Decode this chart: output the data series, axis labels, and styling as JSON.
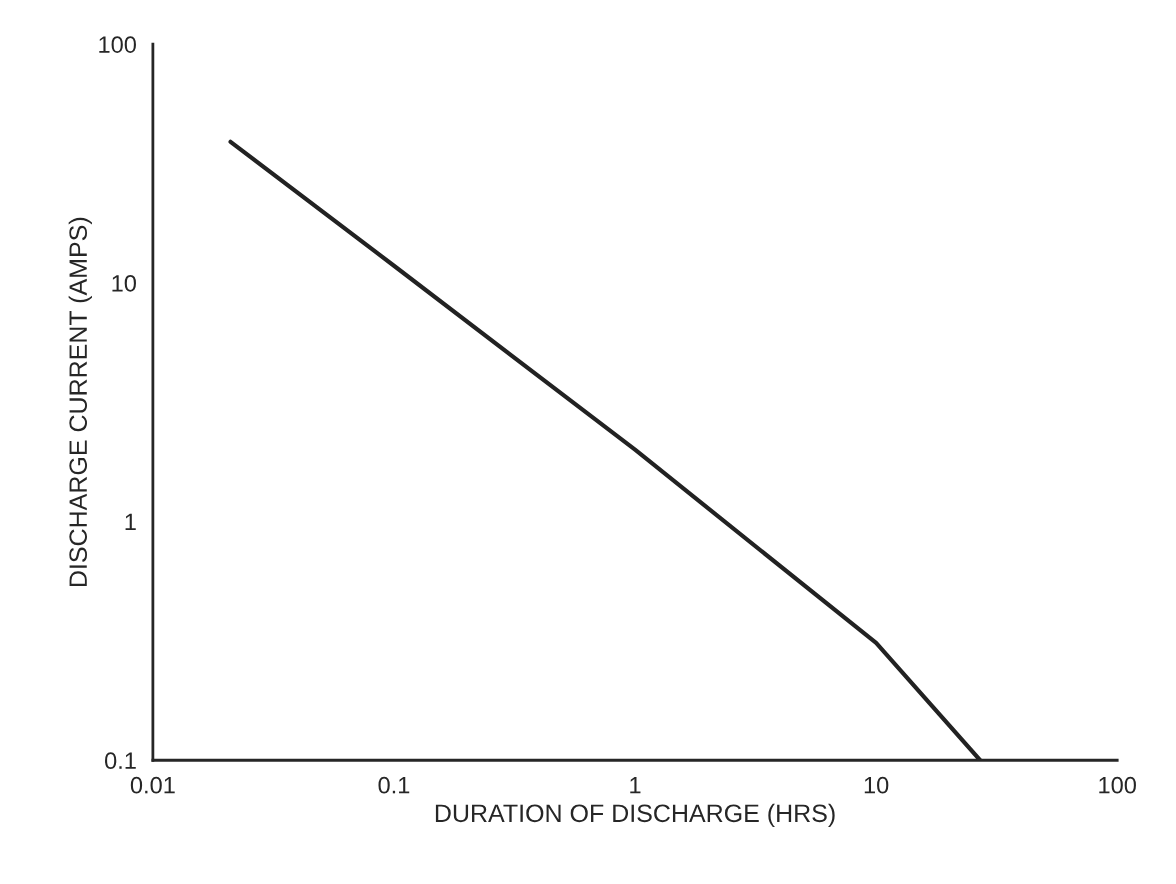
{
  "chart_data": {
    "type": "line",
    "xlabel": "DURATION OF DISCHARGE (HRS)",
    "ylabel": "DISCHARGE CURRENT (AMPS)",
    "log": "xy",
    "grid": false,
    "legend": false,
    "marker": "none",
    "line_style": "solid",
    "x": [
      0.021,
      0.1,
      1,
      10,
      27
    ],
    "series": [
      {
        "color": "#222222",
        "values": [
          39,
          11.8,
          2,
          0.31,
          0.1
        ]
      }
    ],
    "xlim": [
      0.01,
      100
    ],
    "ylim": [
      0.1,
      100
    ],
    "xticks": [
      0.01,
      0.1,
      1,
      10,
      100
    ],
    "yticks": [
      0.1,
      1,
      10,
      100
    ]
  }
}
